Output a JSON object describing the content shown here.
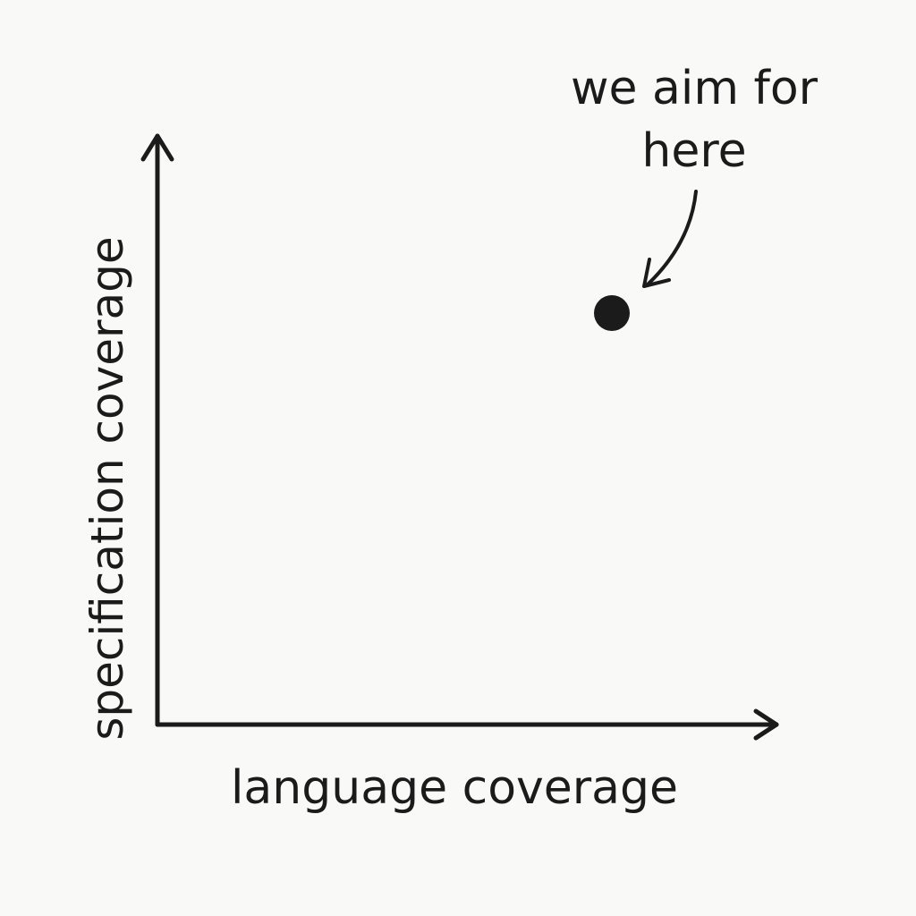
{
  "diagram": {
    "x_axis_label": "language coverage",
    "y_axis_label": "specification coverage",
    "annotation": {
      "line1": "we aim for",
      "line2": "here"
    },
    "ink_color": "#1b1b1b",
    "background_color": "#f9f9f7"
  }
}
